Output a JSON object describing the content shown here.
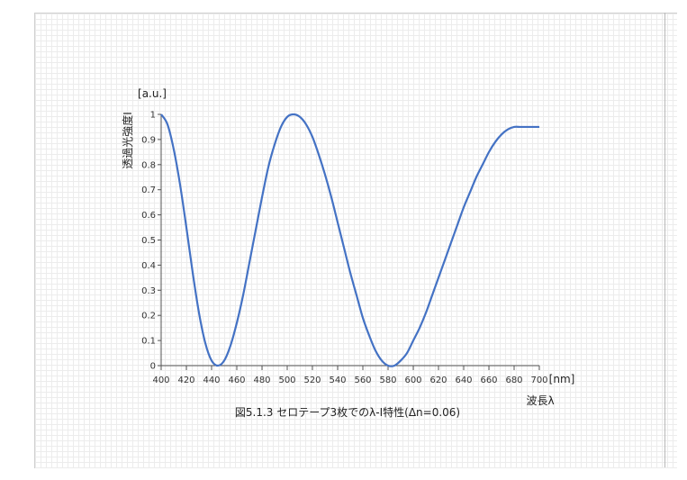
{
  "chart_data": {
    "type": "line",
    "title": "図5.1.3 セロテープ3枚でのλ-I特性(Δn=0.06)",
    "xlabel": "波長λ",
    "xunit": "[nm]",
    "ylabel": "透過光強度I",
    "yunit": "[a.u.]",
    "xlim": [
      400,
      700
    ],
    "ylim": [
      0,
      1
    ],
    "xticks": [
      "400",
      "420",
      "440",
      "460",
      "480",
      "500",
      "520",
      "540",
      "560",
      "580",
      "600",
      "620",
      "640",
      "660",
      "680",
      "700"
    ],
    "yticks": [
      "0",
      "0.1",
      "0.2",
      "0.3",
      "0.4",
      "0.5",
      "0.6",
      "0.7",
      "0.8",
      "0.9",
      "1"
    ],
    "grid": false,
    "series": [
      {
        "color": "#4472c4",
        "x": [
          400,
          405,
          410,
          415,
          420,
          425,
          430,
          435,
          440,
          445,
          450,
          455,
          460,
          465,
          470,
          475,
          480,
          485,
          490,
          495,
          500,
          505,
          510,
          515,
          520,
          525,
          530,
          535,
          540,
          545,
          550,
          555,
          560,
          565,
          570,
          575,
          580,
          585,
          590,
          595,
          600,
          605,
          610,
          615,
          620,
          625,
          630,
          635,
          640,
          645,
          650,
          655,
          660,
          665,
          670,
          675,
          680,
          685,
          690,
          695,
          700
        ],
        "y": [
          1.0,
          0.96,
          0.86,
          0.72,
          0.55,
          0.37,
          0.21,
          0.09,
          0.02,
          0.0,
          0.02,
          0.08,
          0.17,
          0.28,
          0.41,
          0.54,
          0.67,
          0.79,
          0.88,
          0.95,
          0.99,
          1.0,
          0.99,
          0.96,
          0.91,
          0.84,
          0.76,
          0.67,
          0.57,
          0.47,
          0.37,
          0.28,
          0.19,
          0.12,
          0.06,
          0.02,
          0.0,
          0.0,
          0.02,
          0.05,
          0.1,
          0.15,
          0.21,
          0.28,
          0.35,
          0.42,
          0.49,
          0.56,
          0.63,
          0.69,
          0.75,
          0.8,
          0.85,
          0.89,
          0.92,
          0.94,
          0.95,
          0.95,
          0.95,
          0.95,
          0.95
        ]
      }
    ]
  }
}
